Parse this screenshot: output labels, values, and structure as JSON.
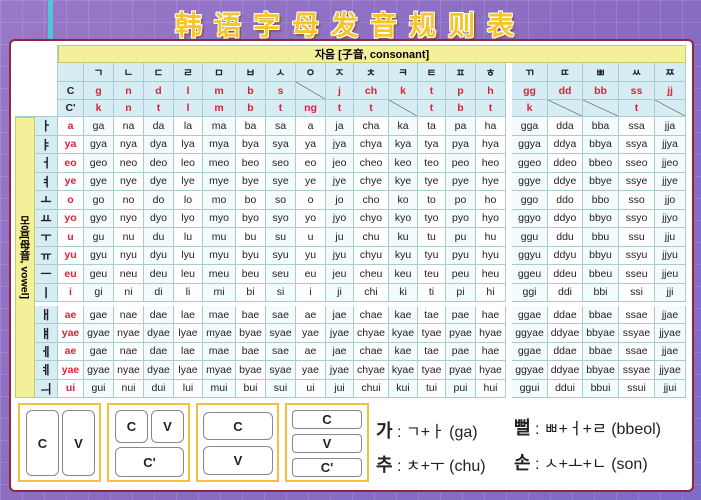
{
  "title": "韩语字母发音规则表",
  "consonant_header": "자음 [子音, consonant]",
  "vowel_header": "모음[母音, vowel]",
  "row_labels": {
    "c": "C",
    "c_prime": "C'"
  },
  "consonants": [
    {
      "jamo": "ㄱ",
      "c": "g",
      "cp": "k"
    },
    {
      "jamo": "ㄴ",
      "c": "n",
      "cp": "n"
    },
    {
      "jamo": "ㄷ",
      "c": "d",
      "cp": "t"
    },
    {
      "jamo": "ㄹ",
      "c": "l",
      "cp": "l"
    },
    {
      "jamo": "ㅁ",
      "c": "m",
      "cp": "m"
    },
    {
      "jamo": "ㅂ",
      "c": "b",
      "cp": "b"
    },
    {
      "jamo": "ㅅ",
      "c": "s",
      "cp": "t"
    },
    {
      "jamo": "ㅇ",
      "c": "",
      "cp": "ng"
    },
    {
      "jamo": "ㅈ",
      "c": "j",
      "cp": "t"
    },
    {
      "jamo": "ㅊ",
      "c": "ch",
      "cp": "t"
    },
    {
      "jamo": "ㅋ",
      "c": "k",
      "cp": ""
    },
    {
      "jamo": "ㅌ",
      "c": "t",
      "cp": "t"
    },
    {
      "jamo": "ㅍ",
      "c": "p",
      "cp": "b"
    },
    {
      "jamo": "ㅎ",
      "c": "h",
      "cp": "t"
    },
    {
      "jamo": "ㄲ",
      "c": "gg",
      "cp": "k"
    },
    {
      "jamo": "ㄸ",
      "c": "dd",
      "cp": ""
    },
    {
      "jamo": "ㅃ",
      "c": "bb",
      "cp": ""
    },
    {
      "jamo": "ㅆ",
      "c": "ss",
      "cp": "t"
    },
    {
      "jamo": "ㅉ",
      "c": "jj",
      "cp": ""
    }
  ],
  "vowels": [
    {
      "jamo": "ㅏ",
      "roman": "a",
      "syllables": [
        "ga",
        "na",
        "da",
        "la",
        "ma",
        "ba",
        "sa",
        "a",
        "ja",
        "cha",
        "ka",
        "ta",
        "pa",
        "ha",
        "gga",
        "dda",
        "bba",
        "ssa",
        "jja"
      ]
    },
    {
      "jamo": "ㅑ",
      "roman": "ya",
      "syllables": [
        "gya",
        "nya",
        "dya",
        "lya",
        "mya",
        "bya",
        "sya",
        "ya",
        "jya",
        "chya",
        "kya",
        "tya",
        "pya",
        "hya",
        "ggya",
        "ddya",
        "bbya",
        "ssya",
        "jjya"
      ]
    },
    {
      "jamo": "ㅓ",
      "roman": "eo",
      "syllables": [
        "geo",
        "neo",
        "deo",
        "leo",
        "meo",
        "beo",
        "seo",
        "eo",
        "jeo",
        "cheo",
        "keo",
        "teo",
        "peo",
        "heo",
        "ggeo",
        "ddeo",
        "bbeo",
        "sseo",
        "jjeo"
      ]
    },
    {
      "jamo": "ㅕ",
      "roman": "ye",
      "syllables": [
        "gye",
        "nye",
        "dye",
        "lye",
        "mye",
        "bye",
        "sye",
        "ye",
        "jye",
        "chye",
        "kye",
        "tye",
        "pye",
        "hye",
        "ggye",
        "ddye",
        "bbye",
        "ssye",
        "jjye"
      ]
    },
    {
      "jamo": "ㅗ",
      "roman": "o",
      "syllables": [
        "go",
        "no",
        "do",
        "lo",
        "mo",
        "bo",
        "so",
        "o",
        "jo",
        "cho",
        "ko",
        "to",
        "po",
        "ho",
        "ggo",
        "ddo",
        "bbo",
        "sso",
        "jjo"
      ]
    },
    {
      "jamo": "ㅛ",
      "roman": "yo",
      "syllables": [
        "gyo",
        "nyo",
        "dyo",
        "lyo",
        "myo",
        "byo",
        "syo",
        "yo",
        "jyo",
        "chyo",
        "kyo",
        "tyo",
        "pyo",
        "hyo",
        "ggyo",
        "ddyo",
        "bbyo",
        "ssyo",
        "jjyo"
      ]
    },
    {
      "jamo": "ㅜ",
      "roman": "u",
      "syllables": [
        "gu",
        "nu",
        "du",
        "lu",
        "mu",
        "bu",
        "su",
        "u",
        "ju",
        "chu",
        "ku",
        "tu",
        "pu",
        "hu",
        "ggu",
        "ddu",
        "bbu",
        "ssu",
        "jju"
      ]
    },
    {
      "jamo": "ㅠ",
      "roman": "yu",
      "syllables": [
        "gyu",
        "nyu",
        "dyu",
        "lyu",
        "myu",
        "byu",
        "syu",
        "yu",
        "jyu",
        "chyu",
        "kyu",
        "tyu",
        "pyu",
        "hyu",
        "ggyu",
        "ddyu",
        "bbyu",
        "ssyu",
        "jjyu"
      ]
    },
    {
      "jamo": "ㅡ",
      "roman": "eu",
      "syllables": [
        "geu",
        "neu",
        "deu",
        "leu",
        "meu",
        "beu",
        "seu",
        "eu",
        "jeu",
        "cheu",
        "keu",
        "teu",
        "peu",
        "heu",
        "ggeu",
        "ddeu",
        "bbeu",
        "sseu",
        "jjeu"
      ]
    },
    {
      "jamo": "ㅣ",
      "roman": "i",
      "syllables": [
        "gi",
        "ni",
        "di",
        "li",
        "mi",
        "bi",
        "si",
        "i",
        "ji",
        "chi",
        "ki",
        "ti",
        "pi",
        "hi",
        "ggi",
        "ddi",
        "bbi",
        "ssi",
        "jji"
      ]
    },
    {
      "jamo": "ㅐ",
      "roman": "ae",
      "syllables": [
        "gae",
        "nae",
        "dae",
        "lae",
        "mae",
        "bae",
        "sae",
        "ae",
        "jae",
        "chae",
        "kae",
        "tae",
        "pae",
        "hae",
        "ggae",
        "ddae",
        "bbae",
        "ssae",
        "jjae"
      ]
    },
    {
      "jamo": "ㅒ",
      "roman": "yae",
      "syllables": [
        "gyae",
        "nyae",
        "dyae",
        "lyae",
        "myae",
        "byae",
        "syae",
        "yae",
        "jyae",
        "chyae",
        "kyae",
        "tyae",
        "pyae",
        "hyae",
        "ggyae",
        "ddyae",
        "bbyae",
        "ssyae",
        "jjyae"
      ]
    },
    {
      "jamo": "ㅔ",
      "roman": "ae",
      "syllables": [
        "gae",
        "nae",
        "dae",
        "lae",
        "mae",
        "bae",
        "sae",
        "ae",
        "jae",
        "chae",
        "kae",
        "tae",
        "pae",
        "hae",
        "ggae",
        "ddae",
        "bbae",
        "ssae",
        "jjae"
      ]
    },
    {
      "jamo": "ㅖ",
      "roman": "yae",
      "syllables": [
        "gyae",
        "nyae",
        "dyae",
        "lyae",
        "myae",
        "byae",
        "syae",
        "yae",
        "jyae",
        "chyae",
        "kyae",
        "tyae",
        "pyae",
        "hyae",
        "ggyae",
        "ddyae",
        "bbyae",
        "ssyae",
        "jjyae"
      ]
    },
    {
      "jamo": "ㅢ",
      "roman": "ui",
      "syllables": [
        "gui",
        "nui",
        "dui",
        "lui",
        "mui",
        "bui",
        "sui",
        "ui",
        "jui",
        "chui",
        "kui",
        "tui",
        "pui",
        "hui",
        "ggui",
        "ddui",
        "bbui",
        "ssui",
        "jjui"
      ]
    }
  ],
  "structures": {
    "c": "C",
    "v": "V",
    "cp": "C'"
  },
  "examples": [
    {
      "syllable": "가",
      "formula": " : ㄱ+ㅏ (ga)"
    },
    {
      "syllable": "뻘",
      "formula": " : ㅃ+ㅓ+ㄹ (bbeol)"
    },
    {
      "syllable": "추",
      "formula": " : ㅊ+ㅜ (chu)"
    },
    {
      "syllable": "손",
      "formula": " : ㅅ+ㅗ+ㄴ (son)"
    }
  ],
  "colors": {
    "accent_red": "#e0203a",
    "header_blue": "#d6edf3",
    "header_yellow": "#f4f09a",
    "title_gold": "#f6c52c"
  }
}
